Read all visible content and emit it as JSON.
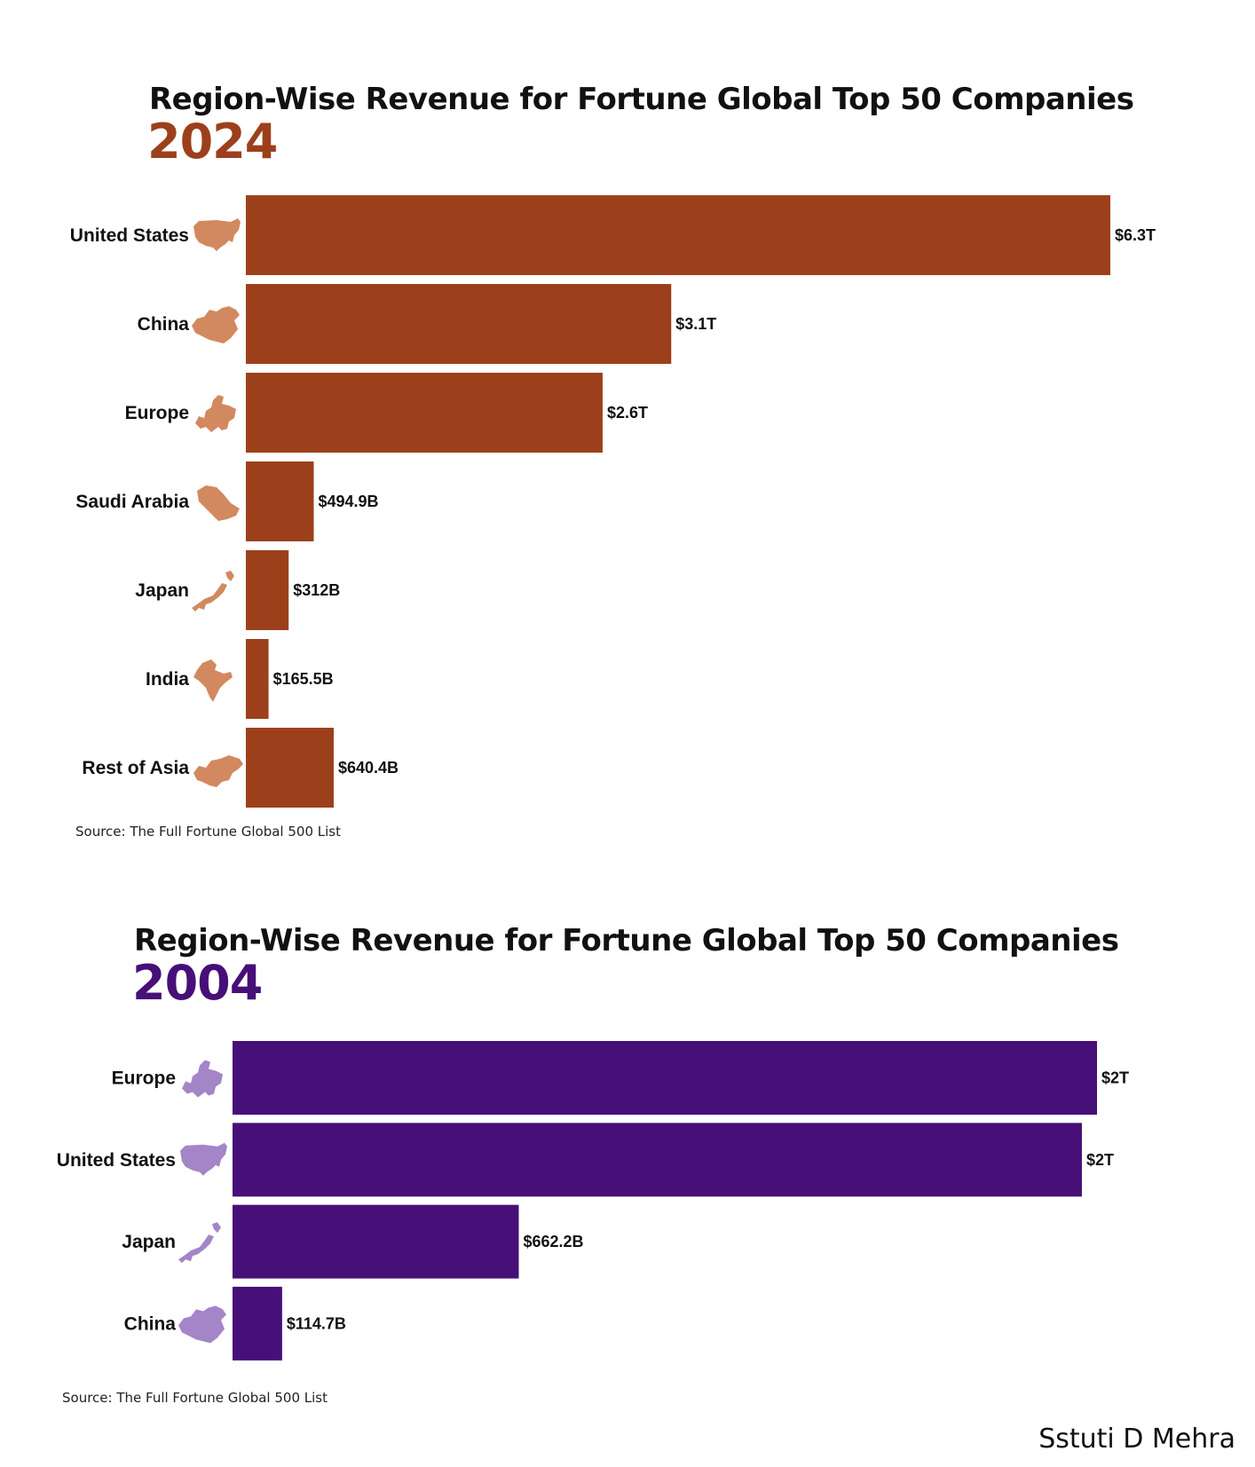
{
  "charts": [
    {
      "title": "Region-Wise Revenue for Fortune Global Top 50 Companies",
      "year": "2024",
      "source": "Source: The Full Fortune Global 500 List",
      "bar_color": "#9c401c",
      "icon_color": "#d2895f"
    },
    {
      "title": "Region-Wise Revenue for Fortune Global Top 50 Companies",
      "year": "2004",
      "source": "Source: The Full Fortune Global 500 List",
      "bar_color": "#470f78",
      "icon_color": "#a485c8"
    }
  ],
  "author": "Sstuti D Mehra",
  "chart_data": [
    {
      "type": "bar",
      "orientation": "horizontal",
      "title": "Region-Wise Revenue for Fortune Global Top 50 Companies",
      "subtitle": "2024",
      "categories": [
        "United States",
        "China",
        "Europe",
        "Saudi Arabia",
        "Japan",
        "India",
        "Rest of Asia"
      ],
      "icons": [
        "united-states-map-icon",
        "china-map-icon",
        "europe-map-icon",
        "saudi-arabia-map-icon",
        "japan-map-icon",
        "india-map-icon",
        "rest-of-asia-map-icon"
      ],
      "values": [
        6300,
        3100,
        2600,
        494.9,
        312,
        165.5,
        640.4
      ],
      "value_unit": "billion USD",
      "labels": [
        "$6.3T",
        "$3.1T",
        "$2.6T",
        "$494.9B",
        "$312B",
        "$165.5B",
        "$640.4B"
      ],
      "xlim": [
        0,
        6300
      ],
      "grid": false,
      "legend": "none"
    },
    {
      "type": "bar",
      "orientation": "horizontal",
      "title": "Region-Wise Revenue for Fortune Global Top 50 Companies",
      "subtitle": "2004",
      "categories": [
        "Europe",
        "United States",
        "Japan",
        "China"
      ],
      "icons": [
        "europe-map-icon",
        "united-states-map-icon",
        "japan-map-icon",
        "china-map-icon"
      ],
      "values": [
        2000,
        1965,
        662.2,
        114.7
      ],
      "value_unit": "billion USD",
      "labels": [
        "$2T",
        "$2T",
        "$662.2B",
        "$114.7B"
      ],
      "xlim": [
        0,
        2000
      ],
      "grid": false,
      "legend": "none"
    }
  ]
}
